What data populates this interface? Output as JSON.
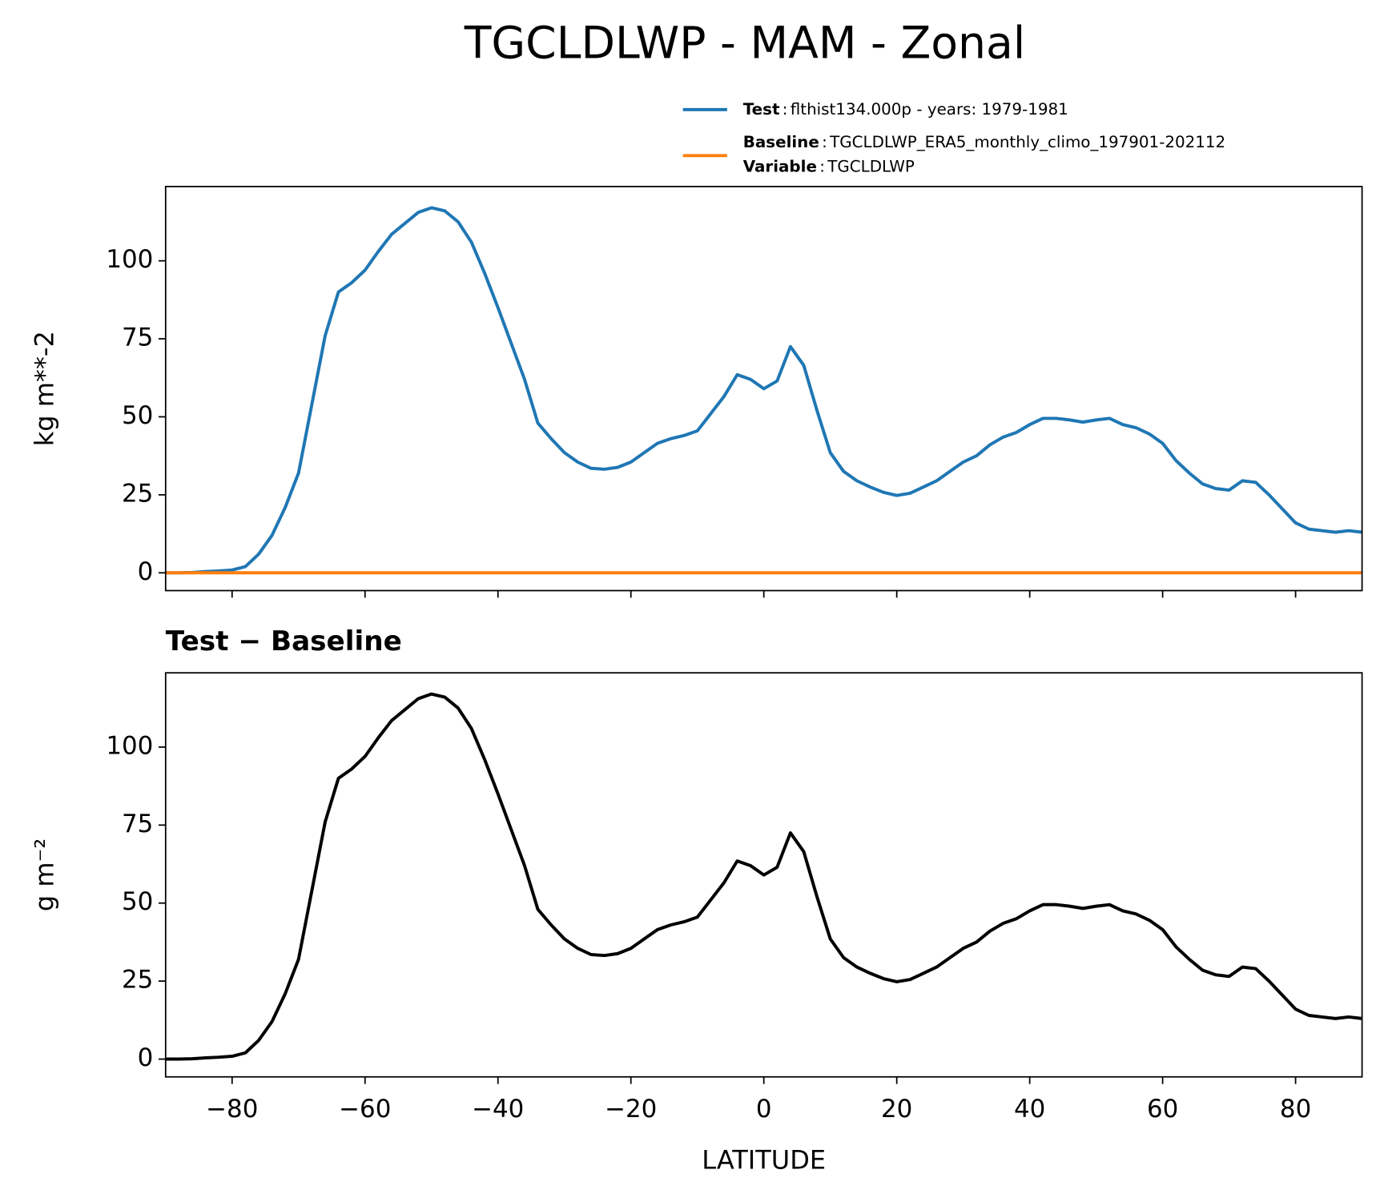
{
  "chart_data": [
    {
      "type": "line",
      "title": "TGCLDLWP - MAM - Zonal",
      "title_loc": "figure",
      "ylabel": "kg m**-2",
      "xlim": [
        -90,
        90
      ],
      "ylim": [
        -5.7,
        123.8
      ],
      "yticks": [
        0,
        25,
        50,
        75,
        100
      ],
      "xticks": [
        -80,
        -60,
        -40,
        -20,
        0,
        20,
        40,
        60,
        80
      ],
      "xticklabels": false,
      "legend_separator": ":",
      "x": [
        -90,
        -88,
        -86,
        -84,
        -82,
        -80,
        -78,
        -76,
        -74,
        -72,
        -70,
        -68,
        -66,
        -64,
        -62,
        -60,
        -58,
        -56,
        -54,
        -52,
        -50,
        -48,
        -46,
        -44,
        -42,
        -40,
        -38,
        -36,
        -34,
        -32,
        -30,
        -28,
        -26,
        -24,
        -22,
        -20,
        -18,
        -16,
        -14,
        -12,
        -10,
        -8,
        -6,
        -4,
        -2,
        0,
        2,
        4,
        6,
        8,
        10,
        12,
        14,
        16,
        18,
        20,
        22,
        24,
        26,
        28,
        30,
        32,
        34,
        36,
        38,
        40,
        42,
        44,
        46,
        48,
        50,
        52,
        54,
        56,
        58,
        60,
        62,
        64,
        66,
        68,
        70,
        72,
        74,
        76,
        78,
        80,
        82,
        84,
        86,
        88,
        90
      ],
      "series": [
        {
          "name": "Test",
          "legend_text": "flthist134.000p - years: 1979-1981",
          "color": "#1f77b4",
          "values": [
            0,
            0,
            0.1,
            0.4,
            0.6,
            0.9,
            2,
            6,
            12,
            21,
            32,
            54,
            76,
            90,
            93,
            97,
            103,
            108.5,
            112,
            115.5,
            117,
            116,
            112.5,
            106,
            96,
            85,
            73.5,
            62,
            48,
            43,
            38.5,
            35.5,
            33.5,
            33.2,
            33.8,
            35.5,
            38.5,
            41.5,
            43,
            44,
            45.5,
            51,
            56.5,
            63.5,
            62,
            59,
            61.5,
            72.5,
            66.5,
            52,
            38.5,
            32.5,
            29.5,
            27.5,
            25.8,
            24.8,
            25.5,
            27.5,
            29.5,
            32.5,
            35.5,
            37.5,
            41,
            43.5,
            45,
            47.5,
            49.5,
            49.5,
            49,
            48.3,
            49,
            49.5,
            47.5,
            46.5,
            44.5,
            41.5,
            36,
            32,
            28.5,
            27,
            26.5,
            29.5,
            29,
            25,
            20.5,
            16,
            14,
            13.5,
            13,
            13.5,
            13
          ]
        },
        {
          "name": "Baseline",
          "legend_text": "TGCLDLWP_ERA5_monthly_climo_197901-202112",
          "note_name": "Variable",
          "note_text": "TGCLDLWP",
          "color": "#ff7f0e",
          "values": [
            0,
            0,
            0,
            0,
            0,
            0,
            0,
            0,
            0,
            0,
            0,
            0,
            0,
            0,
            0,
            0,
            0,
            0,
            0,
            0,
            0,
            0,
            0,
            0,
            0,
            0,
            0,
            0,
            0,
            0,
            0,
            0,
            0,
            0,
            0,
            0,
            0,
            0,
            0,
            0,
            0,
            0,
            0,
            0,
            0,
            0,
            0,
            0,
            0,
            0,
            0,
            0,
            0,
            0,
            0,
            0,
            0,
            0,
            0,
            0,
            0,
            0,
            0,
            0,
            0,
            0,
            0,
            0,
            0,
            0,
            0,
            0,
            0,
            0,
            0,
            0,
            0,
            0,
            0,
            0,
            0,
            0,
            0,
            0,
            0,
            0,
            0,
            0,
            0,
            0,
            0
          ]
        }
      ]
    },
    {
      "type": "line",
      "title": "Test − Baseline",
      "title_loc": "left",
      "ylabel": "g m⁻²",
      "xlabel": "LATITUDE",
      "xlim": [
        -90,
        90
      ],
      "ylim": [
        -5.7,
        123.8
      ],
      "yticks": [
        0,
        25,
        50,
        75,
        100
      ],
      "xticks": [
        {
          "value": -80,
          "label": "−80"
        },
        {
          "value": -60,
          "label": "−60"
        },
        {
          "value": -40,
          "label": "−40"
        },
        {
          "value": -20,
          "label": "−20"
        },
        0,
        20,
        40,
        60,
        80
      ],
      "xticklabels": true,
      "x": [
        -90,
        -88,
        -86,
        -84,
        -82,
        -80,
        -78,
        -76,
        -74,
        -72,
        -70,
        -68,
        -66,
        -64,
        -62,
        -60,
        -58,
        -56,
        -54,
        -52,
        -50,
        -48,
        -46,
        -44,
        -42,
        -40,
        -38,
        -36,
        -34,
        -32,
        -30,
        -28,
        -26,
        -24,
        -22,
        -20,
        -18,
        -16,
        -14,
        -12,
        -10,
        -8,
        -6,
        -4,
        -2,
        0,
        2,
        4,
        6,
        8,
        10,
        12,
        14,
        16,
        18,
        20,
        22,
        24,
        26,
        28,
        30,
        32,
        34,
        36,
        38,
        40,
        42,
        44,
        46,
        48,
        50,
        52,
        54,
        56,
        58,
        60,
        62,
        64,
        66,
        68,
        70,
        72,
        74,
        76,
        78,
        80,
        82,
        84,
        86,
        88,
        90
      ],
      "series": [
        {
          "color": "#000000",
          "values": [
            0,
            0,
            0.1,
            0.4,
            0.6,
            0.9,
            2,
            6,
            12,
            21,
            32,
            54,
            76,
            90,
            93,
            97,
            103,
            108.5,
            112,
            115.5,
            117,
            116,
            112.5,
            106,
            96,
            85,
            73.5,
            62,
            48,
            43,
            38.5,
            35.5,
            33.5,
            33.2,
            33.8,
            35.5,
            38.5,
            41.5,
            43,
            44,
            45.5,
            51,
            56.5,
            63.5,
            62,
            59,
            61.5,
            72.5,
            66.5,
            52,
            38.5,
            32.5,
            29.5,
            27.5,
            25.8,
            24.8,
            25.5,
            27.5,
            29.5,
            32.5,
            35.5,
            37.5,
            41,
            43.5,
            45,
            47.5,
            49.5,
            49.5,
            49,
            48.3,
            49,
            49.5,
            47.5,
            46.5,
            44.5,
            41.5,
            36,
            32,
            28.5,
            27,
            26.5,
            29.5,
            29,
            25,
            20.5,
            16,
            14,
            13.5,
            13,
            13.5,
            13
          ]
        }
      ]
    }
  ]
}
